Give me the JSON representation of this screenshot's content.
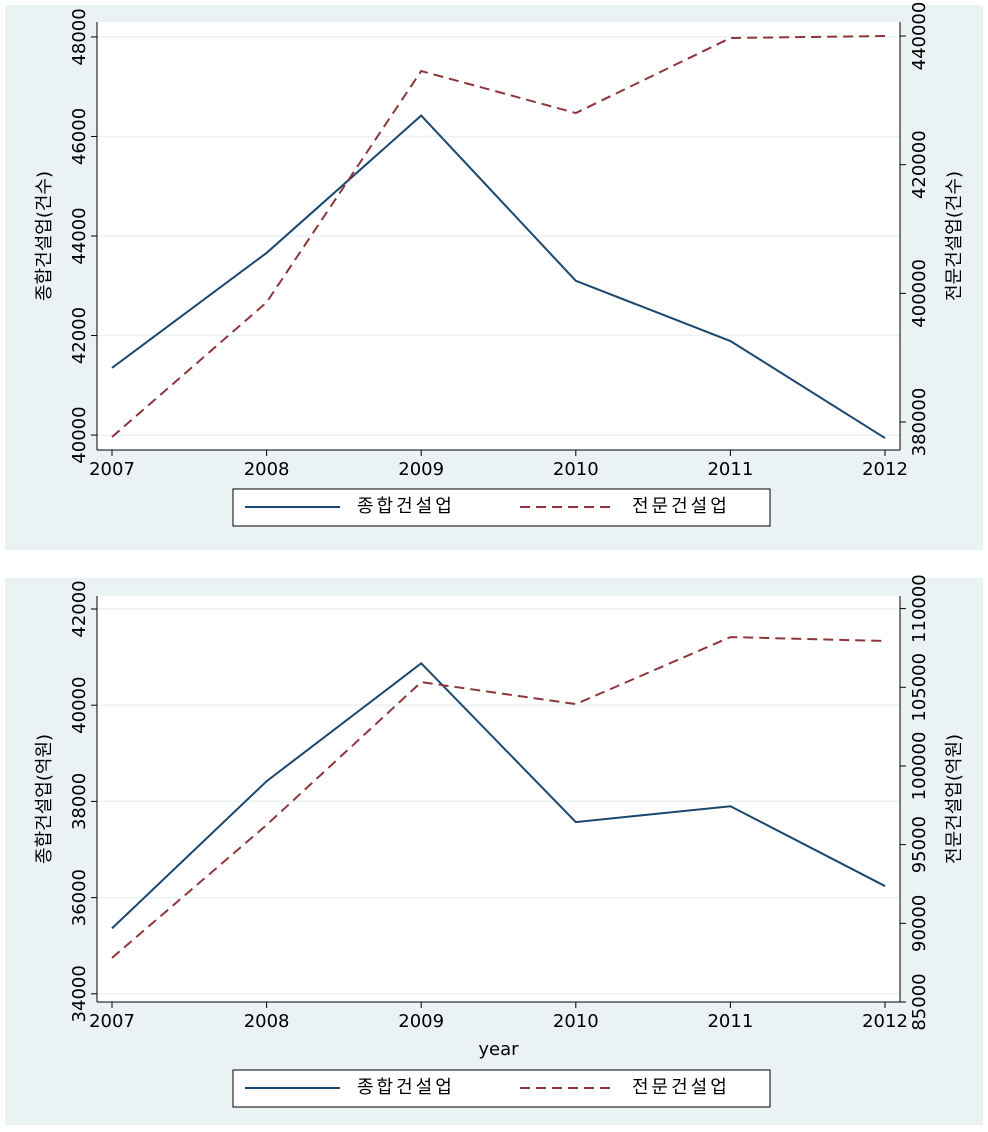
{
  "chart_data": [
    {
      "type": "line",
      "x": [
        2007,
        2008,
        2009,
        2010,
        2011,
        2012
      ],
      "xlim": [
        2007,
        2012
      ],
      "xticks": [
        2007,
        2008,
        2009,
        2010,
        2011,
        2012
      ],
      "ylabel": "종합건설업(건수)",
      "y2label": "전문건설업(건수)",
      "ylim": [
        39700,
        48300
      ],
      "yticks": [
        40000,
        42000,
        44000,
        46000,
        48000
      ],
      "y2lim": [
        375650,
        442180
      ],
      "y2ticks": [
        380000,
        400000,
        420000,
        440000
      ],
      "grid": true,
      "legend": "bottom",
      "series": [
        {
          "name": "종합건설업",
          "color": "#1a476f",
          "line_style": "solid",
          "values": [
            41350,
            43660,
            46420,
            43100,
            41890,
            39940
          ]
        },
        {
          "name": "전문건설업",
          "color": "#90353b",
          "line_style": "dashed",
          "axis": "y2",
          "values": [
            377670,
            398600,
            434560,
            428030,
            439690,
            440000
          ]
        }
      ]
    },
    {
      "type": "line",
      "x": [
        2007,
        2008,
        2009,
        2010,
        2011,
        2012
      ],
      "xlim": [
        2007,
        2012
      ],
      "xticks": [
        2007,
        2008,
        2009,
        2010,
        2011,
        2012
      ],
      "xlabel": "year",
      "ylabel": "종합건설업(억원)",
      "y2label": "전문건설업(억원)",
      "ylim": [
        33830,
        42270
      ],
      "yticks": [
        34000,
        36000,
        38000,
        40000,
        42000
      ],
      "y2lim": [
        85000,
        110800
      ],
      "y2ticks": [
        85000,
        90000,
        95000,
        100000,
        105000,
        110000
      ],
      "grid": true,
      "legend": "bottom",
      "series": [
        {
          "name": "종합건설업",
          "color": "#1a476f",
          "line_style": "solid",
          "values": [
            35360,
            38420,
            40870,
            37570,
            37900,
            36240
          ]
        },
        {
          "name": "전문건설업",
          "color": "#90353b",
          "line_style": "dashed",
          "axis": "y2",
          "values": [
            87800,
            96250,
            105330,
            103930,
            108190,
            107940
          ]
        }
      ]
    }
  ]
}
